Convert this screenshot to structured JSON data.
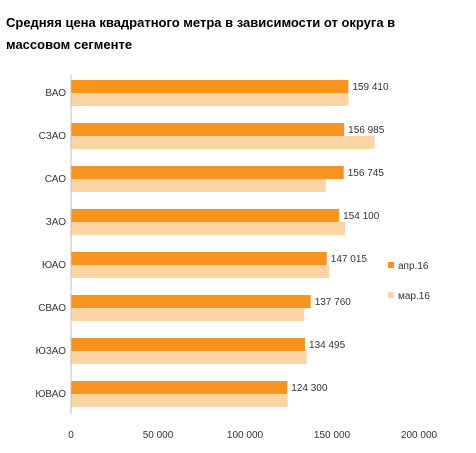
{
  "chart_data": {
    "type": "bar",
    "orientation": "horizontal",
    "title": "Средняя цена квадратного метра в зависимости от округа в массовом сегменте",
    "categories": [
      "ВАО",
      "СЗАО",
      "САО",
      "ЗАО",
      "ЮАО",
      "СВАО",
      "ЮЗАО",
      "ЮВАО"
    ],
    "series": [
      {
        "name": "апр.16",
        "color": "#f7941d",
        "values": [
          159410,
          156985,
          156745,
          154100,
          147015,
          137760,
          134495,
          124300
        ]
      },
      {
        "name": "мар.16",
        "color": "#fcd5a5",
        "values": [
          159500,
          174500,
          146500,
          157500,
          148500,
          134000,
          135500,
          124500
        ]
      }
    ],
    "data_labels": [
      "159 410",
      "156 985",
      "156 745",
      "154 100",
      "147 015",
      "137 760",
      "134 495",
      "124 300"
    ],
    "xlim": [
      0,
      200000
    ],
    "x_ticks": [
      0,
      50000,
      100000,
      150000,
      200000
    ],
    "x_tick_labels": [
      "0",
      "50 000",
      "100 000",
      "150 000",
      "200 000"
    ],
    "grid": false,
    "legend_position": "right"
  }
}
